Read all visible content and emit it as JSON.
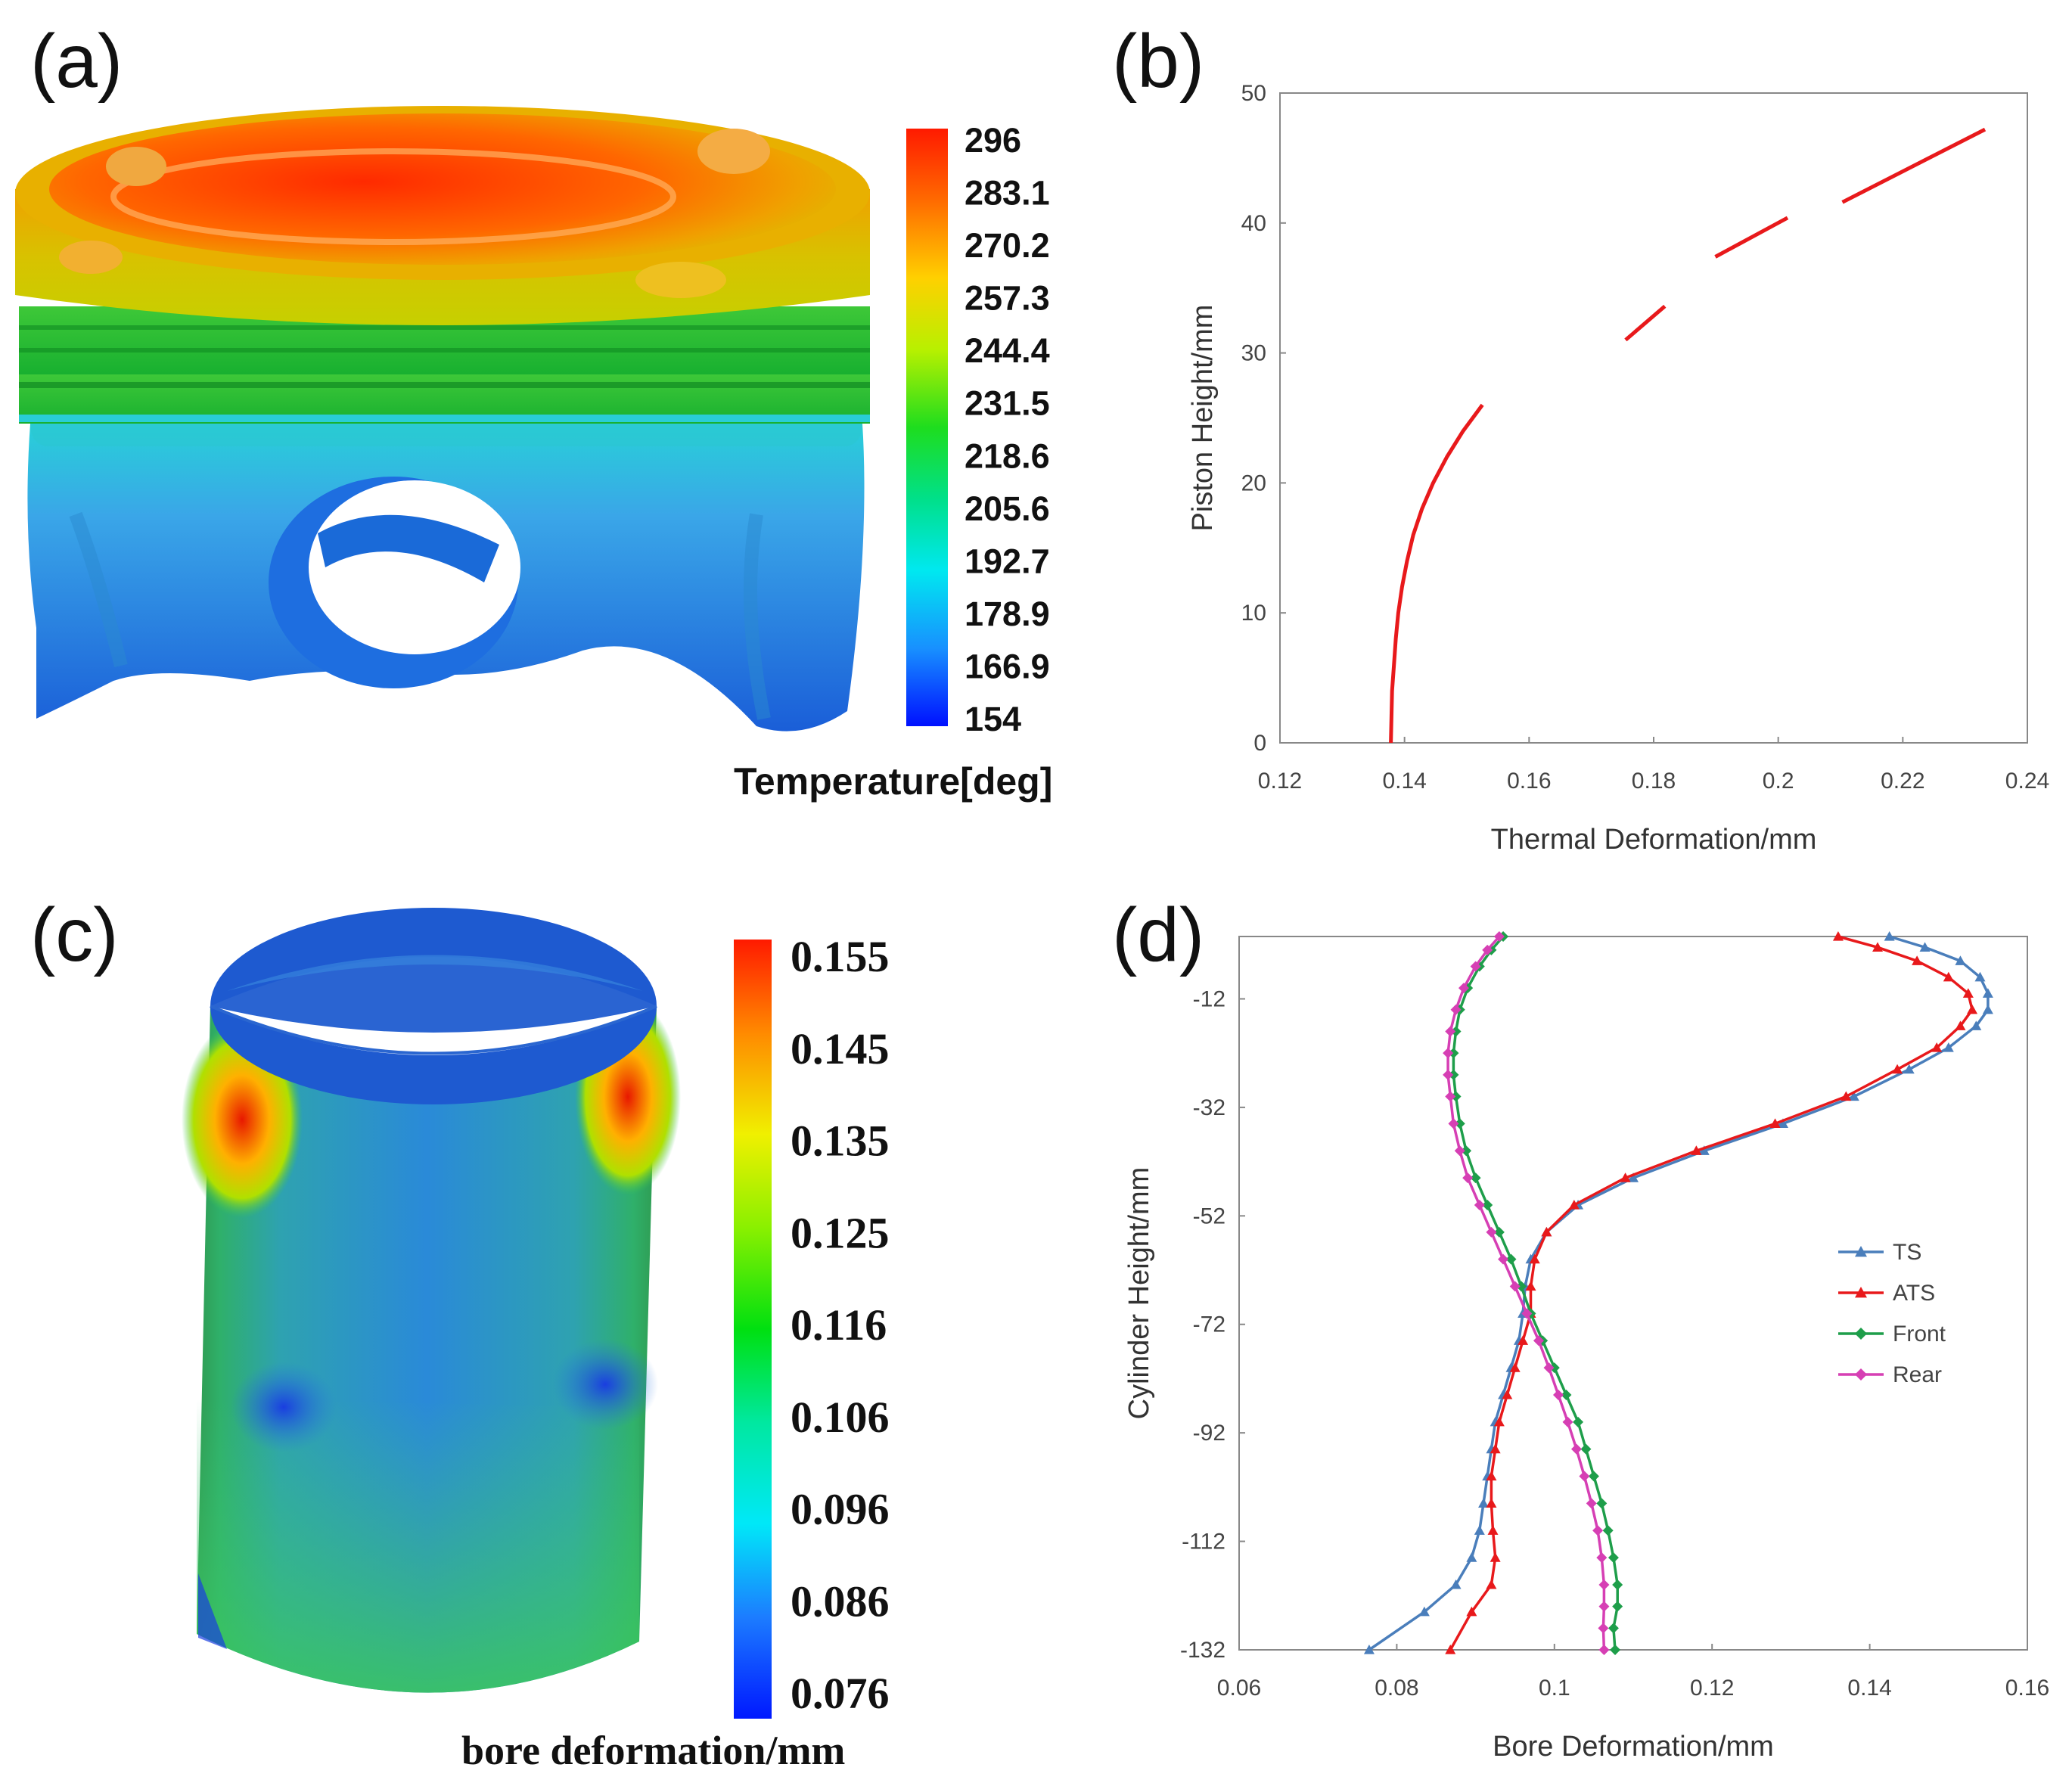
{
  "panels": {
    "a": {
      "label": "(a)",
      "colorbar": {
        "title": "Temperature[deg]",
        "labels": [
          "296",
          "283.1",
          "270.2",
          "257.3",
          "244.4",
          "231.5",
          "218.6",
          "205.6",
          "192.7",
          "178.9",
          "166.9",
          "154"
        ]
      }
    },
    "c": {
      "label": "(c)",
      "colorbar": {
        "title": "bore deformation/mm",
        "labels": [
          "0.155",
          "0.145",
          "0.135",
          "0.125",
          "0.116",
          "0.106",
          "0.096",
          "0.086",
          "0.076"
        ]
      }
    },
    "b": {
      "label": "(b)"
    },
    "d": {
      "label": "(d)"
    }
  },
  "chart_data": [
    {
      "id": "b",
      "type": "line",
      "xlabel": "Thermal Deformation/mm",
      "ylabel": "Piston Height/mm",
      "xlim": [
        0.12,
        0.24
      ],
      "ylim": [
        0,
        50
      ],
      "xticks": [
        "0.12",
        "0.14",
        "0.16",
        "0.18",
        "0.2",
        "0.22",
        "0.24"
      ],
      "yticks": [
        "0",
        "10",
        "20",
        "30",
        "40",
        "50"
      ],
      "series": [
        {
          "name": "Thermal Deformation",
          "color": "#e8191b",
          "segments": [
            [
              [
                0.1378,
                0
              ],
              [
                0.1379,
                2
              ],
              [
                0.138,
                4
              ],
              [
                0.1383,
                6
              ],
              [
                0.1386,
                8
              ],
              [
                0.139,
                10
              ],
              [
                0.1396,
                12
              ],
              [
                0.1404,
                14
              ],
              [
                0.1414,
                16
              ],
              [
                0.1428,
                18
              ],
              [
                0.1446,
                20
              ],
              [
                0.1468,
                22
              ],
              [
                0.1494,
                24
              ],
              [
                0.1525,
                26
              ]
            ],
            [
              [
                0.1755,
                31
              ],
              [
                0.1818,
                33.6
              ]
            ],
            [
              [
                0.1899,
                37.4
              ],
              [
                0.2015,
                40.4
              ]
            ],
            [
              [
                0.2103,
                41.6
              ],
              [
                0.2332,
                47.2
              ]
            ]
          ]
        }
      ]
    },
    {
      "id": "d",
      "type": "line",
      "xlabel": "Bore Deformation/mm",
      "ylabel": "Cylinder Height/mm",
      "xlim": [
        0.06,
        0.16
      ],
      "ylim": [
        -132,
        -0.5
      ],
      "xticks": [
        "0.06",
        "0.08",
        "0.1",
        "0.12",
        "0.14",
        "0.16"
      ],
      "yticks": [
        "-12",
        "-32",
        "-52",
        "-72",
        "-92",
        "-112",
        "-132"
      ],
      "legend": {
        "position": "right",
        "entries": [
          "TS",
          "ATS",
          "Front",
          "Rear"
        ]
      },
      "series": [
        {
          "name": "TS",
          "color": "#4a7ebb",
          "marker": "triangle",
          "points": [
            [
              0.1425,
              -0.5
            ],
            [
              0.147,
              -2.5
            ],
            [
              0.1515,
              -5
            ],
            [
              0.154,
              -8
            ],
            [
              0.155,
              -11
            ],
            [
              0.155,
              -14
            ],
            [
              0.1535,
              -17
            ],
            [
              0.15,
              -21
            ],
            [
              0.145,
              -25
            ],
            [
              0.138,
              -30
            ],
            [
              0.129,
              -35
            ],
            [
              0.119,
              -40
            ],
            [
              0.11,
              -45
            ],
            [
              0.103,
              -50
            ],
            [
              0.099,
              -55
            ],
            [
              0.097,
              -60
            ],
            [
              0.0963,
              -65
            ],
            [
              0.096,
              -70
            ],
            [
              0.0955,
              -75
            ],
            [
              0.0945,
              -80
            ],
            [
              0.0935,
              -85
            ],
            [
              0.0925,
              -90
            ],
            [
              0.092,
              -95
            ],
            [
              0.0915,
              -100
            ],
            [
              0.091,
              -105
            ],
            [
              0.0905,
              -110
            ],
            [
              0.0895,
              -115
            ],
            [
              0.0875,
              -120
            ],
            [
              0.0835,
              -125
            ],
            [
              0.0765,
              -132
            ]
          ]
        },
        {
          "name": "ATS",
          "color": "#e8191b",
          "marker": "triangle",
          "points": [
            [
              0.136,
              -0.5
            ],
            [
              0.141,
              -2.5
            ],
            [
              0.146,
              -5
            ],
            [
              0.15,
              -8
            ],
            [
              0.1525,
              -11
            ],
            [
              0.153,
              -14
            ],
            [
              0.1515,
              -17
            ],
            [
              0.1485,
              -21
            ],
            [
              0.1435,
              -25
            ],
            [
              0.137,
              -30
            ],
            [
              0.128,
              -35
            ],
            [
              0.118,
              -40
            ],
            [
              0.109,
              -45
            ],
            [
              0.1025,
              -50
            ],
            [
              0.099,
              -55
            ],
            [
              0.0975,
              -60
            ],
            [
              0.097,
              -65
            ],
            [
              0.097,
              -70
            ],
            [
              0.096,
              -75
            ],
            [
              0.095,
              -80
            ],
            [
              0.094,
              -85
            ],
            [
              0.093,
              -90
            ],
            [
              0.0925,
              -95
            ],
            [
              0.092,
              -100
            ],
            [
              0.092,
              -105
            ],
            [
              0.0922,
              -110
            ],
            [
              0.0925,
              -115
            ],
            [
              0.092,
              -120
            ],
            [
              0.0895,
              -125
            ],
            [
              0.0868,
              -132
            ]
          ]
        },
        {
          "name": "Front",
          "color": "#1e9e4a",
          "marker": "diamond",
          "points": [
            [
              0.0935,
              -0.5
            ],
            [
              0.092,
              -3
            ],
            [
              0.0905,
              -6
            ],
            [
              0.089,
              -10
            ],
            [
              0.088,
              -14
            ],
            [
              0.0875,
              -18
            ],
            [
              0.0872,
              -22
            ],
            [
              0.0872,
              -26
            ],
            [
              0.0875,
              -30
            ],
            [
              0.088,
              -35
            ],
            [
              0.0888,
              -40
            ],
            [
              0.09,
              -45
            ],
            [
              0.0915,
              -50
            ],
            [
              0.093,
              -55
            ],
            [
              0.0945,
              -60
            ],
            [
              0.0958,
              -65
            ],
            [
              0.097,
              -70
            ],
            [
              0.0985,
              -75
            ],
            [
              0.1,
              -80
            ],
            [
              0.1015,
              -85
            ],
            [
              0.103,
              -90
            ],
            [
              0.104,
              -95
            ],
            [
              0.105,
              -100
            ],
            [
              0.106,
              -105
            ],
            [
              0.1068,
              -110
            ],
            [
              0.1075,
              -115
            ],
            [
              0.108,
              -120
            ],
            [
              0.108,
              -124
            ],
            [
              0.1075,
              -128
            ],
            [
              0.1077,
              -132
            ]
          ]
        },
        {
          "name": "Rear",
          "color": "#d63fb4",
          "marker": "diamond",
          "points": [
            [
              0.093,
              -0.5
            ],
            [
              0.0915,
              -3
            ],
            [
              0.09,
              -6
            ],
            [
              0.0885,
              -10
            ],
            [
              0.0875,
              -14
            ],
            [
              0.0868,
              -18
            ],
            [
              0.0865,
              -22
            ],
            [
              0.0865,
              -26
            ],
            [
              0.0868,
              -30
            ],
            [
              0.0872,
              -35
            ],
            [
              0.088,
              -40
            ],
            [
              0.089,
              -45
            ],
            [
              0.0905,
              -50
            ],
            [
              0.092,
              -55
            ],
            [
              0.0935,
              -60
            ],
            [
              0.095,
              -65
            ],
            [
              0.0965,
              -70
            ],
            [
              0.098,
              -75
            ],
            [
              0.0993,
              -80
            ],
            [
              0.1005,
              -85
            ],
            [
              0.1017,
              -90
            ],
            [
              0.1028,
              -95
            ],
            [
              0.1038,
              -100
            ],
            [
              0.1047,
              -105
            ],
            [
              0.1055,
              -110
            ],
            [
              0.106,
              -115
            ],
            [
              0.1063,
              -120
            ],
            [
              0.1063,
              -124
            ],
            [
              0.1062,
              -128
            ],
            [
              0.1063,
              -132
            ]
          ]
        }
      ]
    }
  ]
}
